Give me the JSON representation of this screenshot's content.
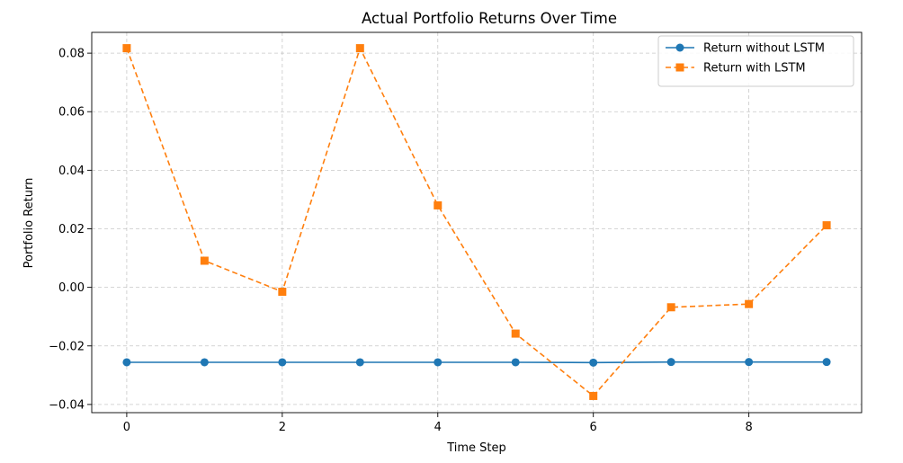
{
  "chart_data": {
    "type": "line",
    "title": "Actual Portfolio Returns Over Time",
    "xlabel": "Time Step",
    "ylabel": "Portfolio Return",
    "x": [
      0,
      1,
      2,
      3,
      4,
      5,
      6,
      7,
      8,
      9
    ],
    "xlim": [
      -0.45,
      9.45
    ],
    "ylim": [
      -0.0428,
      0.0871
    ],
    "xticks": [
      0,
      2,
      4,
      6,
      8
    ],
    "yticks": [
      -0.04,
      -0.02,
      0.0,
      0.02,
      0.04,
      0.06,
      0.08
    ],
    "xtick_labels": [
      "0",
      "2",
      "4",
      "6",
      "8"
    ],
    "ytick_labels": [
      "−0.04",
      "−0.02",
      "0.00",
      "0.02",
      "0.04",
      "0.06",
      "0.08"
    ],
    "grid": true,
    "legend_position": "top-right",
    "series": [
      {
        "name": "Return without LSTM",
        "color": "#1f77b4",
        "line_style": "solid",
        "marker": "circle",
        "values": [
          -0.0256,
          -0.0256,
          -0.0256,
          -0.0256,
          -0.0256,
          -0.0256,
          -0.0257,
          -0.0255,
          -0.0255,
          -0.0255
        ]
      },
      {
        "name": "Return with LSTM",
        "color": "#ff7f0e",
        "line_style": "dashed",
        "marker": "square",
        "values": [
          0.0817,
          0.0091,
          -0.0015,
          0.0817,
          0.028,
          -0.0158,
          -0.0371,
          -0.0068,
          -0.0057,
          0.0212
        ]
      }
    ]
  }
}
